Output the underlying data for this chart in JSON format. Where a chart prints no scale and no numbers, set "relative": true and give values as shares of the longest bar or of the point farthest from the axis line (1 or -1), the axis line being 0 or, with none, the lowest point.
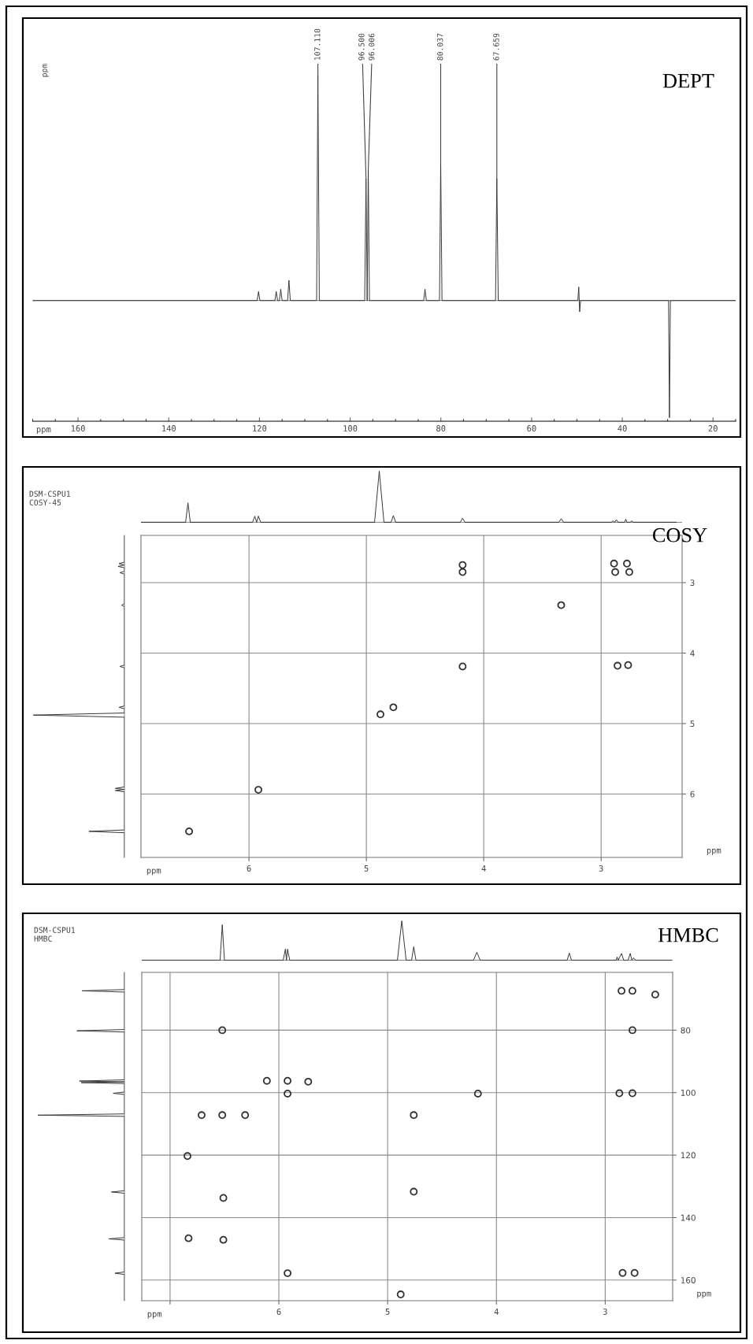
{
  "chart_data": [
    {
      "type": "line",
      "title": "DEPT",
      "xlabel": "ppm",
      "ylabel": "ppm",
      "relative": true,
      "color": "#333333",
      "tick_labels": "x",
      "xlim": [
        170,
        15
      ],
      "xticks": [
        160,
        140,
        120,
        100,
        80,
        60,
        40,
        20
      ],
      "x": [
        170,
        120.5,
        120.2,
        119.9,
        116.6,
        116.3,
        116.0,
        115.6,
        115.3,
        115.0,
        113.8,
        113.5,
        113.2,
        107.4,
        107.11,
        106.8,
        96.8,
        96.5,
        96.25,
        96.006,
        95.75,
        83.8,
        83.5,
        83.2,
        80.3,
        80.037,
        79.75,
        67.95,
        67.659,
        67.35,
        49.8,
        49.6,
        49.4,
        49.2,
        29.8,
        29.6,
        29.4,
        15
      ],
      "values": [
        0,
        0,
        0.04,
        0,
        0,
        0.04,
        0,
        0,
        0.05,
        0,
        0,
        0.09,
        0,
        0,
        1,
        0,
        0,
        0.54,
        0,
        0.58,
        0,
        0,
        0.05,
        0,
        0,
        0.61,
        0,
        0,
        0.54,
        0,
        0,
        0.06,
        -0.05,
        0,
        0,
        -0.52,
        0,
        0
      ],
      "annotations": [
        {
          "text": "107.110",
          "x": 107.11,
          "y": 1
        },
        {
          "text": "96.500",
          "x": 96.5,
          "y": 0.54
        },
        {
          "text": "96.006",
          "x": 96.006,
          "y": 0.58
        },
        {
          "text": "80.037",
          "x": 80.037,
          "y": 0.61
        },
        {
          "text": "67.659",
          "x": 67.659,
          "y": 0.54
        }
      ]
    },
    {
      "type": "line",
      "relative": true,
      "color": "#333333",
      "tick_labels": false,
      "xlim": [
        6.92,
        2.31
      ],
      "x": [
        6.92,
        6.54,
        6.52,
        6.5,
        5.97,
        5.95,
        5.935,
        5.92,
        5.9,
        4.93,
        4.89,
        4.85,
        4.79,
        4.77,
        4.75,
        4.2,
        4.18,
        4.16,
        3.36,
        3.34,
        3.32,
        2.91,
        2.9,
        2.885,
        2.87,
        2.855,
        2.8,
        2.79,
        2.78,
        2.75,
        2.74,
        2.73,
        2.36
      ],
      "values": [
        0,
        0,
        0.38,
        0,
        0,
        0.12,
        0,
        0.12,
        0,
        0,
        1,
        0,
        0,
        0.13,
        0,
        0,
        0.08,
        0,
        0,
        0.07,
        0,
        0,
        0.03,
        0,
        0.05,
        0,
        0,
        0.06,
        0,
        0,
        0.03,
        0,
        0
      ]
    },
    {
      "type": "line",
      "relative": true,
      "orientation": "horizontal",
      "color": "#333333",
      "tick_labels": false,
      "ylim": [
        6.9,
        2.33
      ],
      "x": [
        2.33,
        2.71,
        2.73,
        2.75,
        2.77,
        2.79,
        2.84,
        2.86,
        2.88,
        3.3,
        3.32,
        3.34,
        4.17,
        4.19,
        4.21,
        4.75,
        4.77,
        4.79,
        4.85,
        4.88,
        4.91,
        5.9,
        5.92,
        5.935,
        5.95,
        5.97,
        6.51,
        6.53,
        6.55,
        6.9
      ],
      "values": [
        0,
        0,
        -0.06,
        0,
        -0.07,
        0,
        0,
        -0.05,
        0,
        0,
        -0.03,
        0,
        0,
        -0.05,
        0,
        0,
        -0.06,
        0,
        0,
        -1,
        0,
        0,
        -0.1,
        0,
        -0.1,
        0,
        0,
        -0.39,
        0,
        0
      ]
    },
    {
      "type": "scatter",
      "title": "COSY",
      "xlabel": "ppm",
      "ylabel": "ppm",
      "annotations": [
        "DSM-CSPU1",
        "COSY-45"
      ],
      "color": "#333333",
      "marker": "circle",
      "grid": true,
      "xlim": [
        6.92,
        2.31
      ],
      "ylim": [
        6.9,
        2.33
      ],
      "xticks": [
        6,
        5,
        4,
        3
      ],
      "yticks": [
        3,
        4,
        5,
        6
      ],
      "x": [
        6.51,
        5.92,
        4.88,
        4.77,
        4.18,
        4.18,
        4.18,
        3.34,
        2.86,
        2.77,
        2.89,
        2.78,
        2.88,
        2.76
      ],
      "values": [
        6.53,
        5.94,
        4.87,
        4.77,
        4.19,
        2.85,
        2.75,
        3.32,
        4.18,
        4.17,
        2.73,
        2.73,
        2.85,
        2.85
      ]
    },
    {
      "type": "line",
      "relative": true,
      "color": "#333333",
      "tick_labels": false,
      "xlim": [
        7.26,
        2.38
      ],
      "x": [
        7.26,
        6.54,
        6.52,
        6.5,
        5.96,
        5.94,
        5.93,
        5.92,
        5.9,
        4.91,
        4.87,
        4.83,
        4.78,
        4.76,
        4.74,
        4.21,
        4.18,
        4.15,
        3.35,
        3.33,
        3.31,
        2.9,
        2.89,
        2.88,
        2.85,
        2.83,
        2.79,
        2.77,
        2.755,
        2.74,
        2.72,
        2.39
      ],
      "values": [
        0,
        0,
        0.9,
        0,
        0,
        0.28,
        0,
        0.28,
        0,
        0,
        1,
        0,
        0,
        0.34,
        0,
        0,
        0.2,
        0,
        0,
        0.18,
        0,
        0,
        0.08,
        0,
        0.17,
        0,
        0,
        0.17,
        0,
        0.06,
        0,
        0
      ]
    },
    {
      "type": "line",
      "relative": true,
      "orientation": "horizontal",
      "color": "#333333",
      "tick_labels": false,
      "ylim": [
        166.6,
        61.5
      ],
      "x": [
        61.5,
        67.0,
        67.4,
        67.8,
        79.8,
        80.2,
        80.6,
        95.9,
        96.3,
        96.55,
        96.8,
        97.1,
        99.8,
        100.2,
        100.6,
        106.8,
        107.2,
        107.6,
        131.4,
        131.8,
        132.2,
        146.4,
        146.8,
        147.2,
        157.4,
        157.8,
        158.2,
        166.6
      ],
      "values": [
        0,
        0,
        -0.49,
        0,
        0,
        -0.55,
        0,
        0,
        -0.52,
        0,
        -0.5,
        0,
        0,
        -0.13,
        0,
        0,
        -1,
        0,
        0,
        -0.15,
        0,
        0,
        -0.18,
        0,
        0,
        -0.11,
        0,
        0
      ]
    },
    {
      "type": "scatter",
      "title": "HMBC",
      "xlabel": "ppm",
      "ylabel": "ppm",
      "annotations": [
        "DSM-CSPU1",
        "HMBC"
      ],
      "color": "#333333",
      "marker": "circle",
      "grid": true,
      "xlim": [
        7.26,
        2.38
      ],
      "ylim": [
        166.6,
        61.5
      ],
      "xticks": [
        {
          "value": 7,
          "label": null
        },
        6,
        5,
        4,
        3
      ],
      "yticks": [
        80,
        100,
        120,
        140,
        160
      ],
      "x": [
        2.85,
        2.75,
        2.54,
        2.75,
        6.52,
        6.11,
        5.92,
        5.73,
        5.92,
        4.17,
        2.87,
        2.75,
        6.71,
        6.52,
        6.31,
        4.76,
        6.84,
        6.51,
        4.76,
        6.83,
        6.51,
        5.92,
        2.84,
        2.73,
        4.88
      ],
      "values": [
        67.4,
        67.4,
        68.6,
        80,
        80,
        96.2,
        96.2,
        96.5,
        100.3,
        100.3,
        100.2,
        100.2,
        107.2,
        107.2,
        107.2,
        107.2,
        120.3,
        133.7,
        131.7,
        146.6,
        147.1,
        157.8,
        157.7,
        157.7,
        164.6
      ]
    }
  ]
}
